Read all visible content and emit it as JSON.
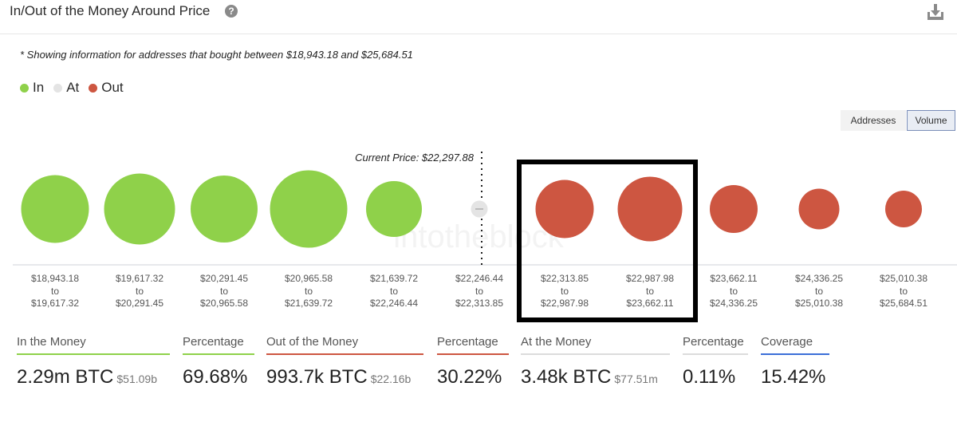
{
  "header": {
    "title": "In/Out of the Money Around Price",
    "help_icon": "question-circle-icon",
    "download_icon": "download-icon"
  },
  "note": "* Showing information for addresses that bought between $18,943.18 and $25,684.51",
  "legend": [
    {
      "label": "In",
      "color": "#8fd14a"
    },
    {
      "label": "At",
      "color": "#e4e4e4"
    },
    {
      "label": "Out",
      "color": "#cd5641"
    }
  ],
  "toggle": {
    "addresses": "Addresses",
    "volume": "Volume",
    "selected": "Volume"
  },
  "chart_data": {
    "type": "bubble",
    "current_price_label": "Current Price: $22,297.88",
    "connector": "to",
    "watermark": "intotheblock",
    "buckets": [
      {
        "from": "$18,943.18",
        "to": "$19,617.32",
        "status": "In",
        "size": 85
      },
      {
        "from": "$19,617.32",
        "to": "$20,291.45",
        "status": "In",
        "size": 89
      },
      {
        "from": "$20,291.45",
        "to": "$20,965.58",
        "status": "In",
        "size": 84
      },
      {
        "from": "$20,965.58",
        "to": "$21,639.72",
        "status": "In",
        "size": 97
      },
      {
        "from": "$21,639.72",
        "to": "$22,246.44",
        "status": "In",
        "size": 70
      },
      {
        "from": "$22,246.44",
        "to": "$22,313.85",
        "status": "At",
        "size": 21
      },
      {
        "from": "$22,313.85",
        "to": "$22,987.98",
        "status": "Out",
        "size": 73
      },
      {
        "from": "$22,987.98",
        "to": "$23,662.11",
        "status": "Out",
        "size": 81
      },
      {
        "from": "$23,662.11",
        "to": "$24,336.25",
        "status": "Out",
        "size": 60
      },
      {
        "from": "$24,336.25",
        "to": "$25,010.38",
        "status": "Out",
        "size": 51
      },
      {
        "from": "$25,010.38",
        "to": "$25,684.51",
        "status": "Out",
        "size": 46
      }
    ],
    "colors": {
      "In": "#8fd14a",
      "At": "#e4e4e4",
      "Out": "#cd5641"
    }
  },
  "stats": {
    "in_label": "In the Money",
    "in_value": "2.29m BTC",
    "in_sub": "$51.09b",
    "in_pct_label": "Percentage",
    "in_pct": "69.68%",
    "out_label": "Out of the Money",
    "out_value": "993.7k BTC",
    "out_sub": "$22.16b",
    "out_pct_label": "Percentage",
    "out_pct": "30.22%",
    "at_label": "At the Money",
    "at_value": "3.48k BTC",
    "at_sub": "$77.51m",
    "at_pct_label": "Percentage",
    "at_pct": "0.11%",
    "coverage_label": "Coverage",
    "coverage": "15.42%",
    "colors": {
      "in": "#8fd14a",
      "out": "#cd5641",
      "at": "#dcdcdc",
      "coverage": "#3b6fd8"
    }
  }
}
